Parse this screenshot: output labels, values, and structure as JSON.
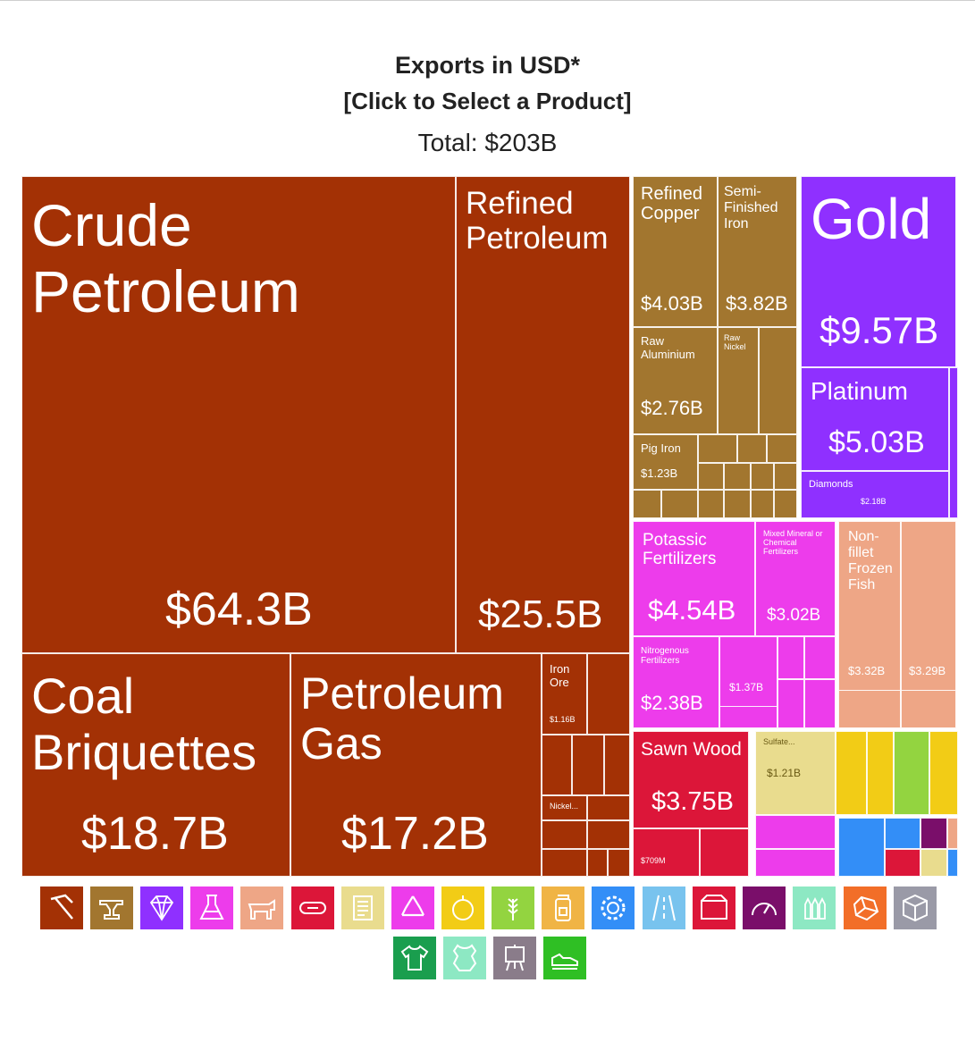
{
  "header": {
    "title": "Exports in USD*",
    "subtitle": "[Click to Select a Product]",
    "total": "Total: $203B"
  },
  "colors": {
    "mineral": "#A33105",
    "metals": "#A2762F",
    "precious": "#8F30FF",
    "chemicals": "#ED3CEB",
    "animal": "#EEA686",
    "wood": "#DC1639",
    "paper": "#E9DC8E",
    "vegetable": "#F2CC16",
    "foodstuffs": "#93D440",
    "machines": "#338EF7",
    "instruments": "#7A0E6A",
    "transport": "#78C3EE"
  },
  "chart_data": {
    "type": "treemap",
    "title": "Exports in USD*",
    "subtitle": "[Click to Select a Product]",
    "total": "Total: $203B",
    "items": [
      {
        "name": "Crude Petroleum",
        "label": "$64.3B",
        "value": 64.3,
        "group": "mineral"
      },
      {
        "name": "Refined Petroleum",
        "label": "$25.5B",
        "value": 25.5,
        "group": "mineral"
      },
      {
        "name": "Coal Briquettes",
        "label": "$18.7B",
        "value": 18.7,
        "group": "mineral"
      },
      {
        "name": "Petroleum Gas",
        "label": "$17.2B",
        "value": 17.2,
        "group": "mineral"
      },
      {
        "name": "Iron Ore",
        "label": "$1.16B",
        "value": 1.16,
        "group": "mineral"
      },
      {
        "name": "Nickel...",
        "label": "",
        "value": 0.6,
        "group": "mineral"
      },
      {
        "name": "Refined Copper",
        "label": "$4.03B",
        "value": 4.03,
        "group": "metals"
      },
      {
        "name": "Semi-Finished Iron",
        "label": "$3.82B",
        "value": 3.82,
        "group": "metals"
      },
      {
        "name": "Raw Aluminium",
        "label": "$2.76B",
        "value": 2.76,
        "group": "metals"
      },
      {
        "name": "Raw Nickel",
        "label": "",
        "value": 1.8,
        "group": "metals"
      },
      {
        "name": "Pig Iron",
        "label": "$1.23B",
        "value": 1.23,
        "group": "metals"
      },
      {
        "name": "Gold",
        "label": "$9.57B",
        "value": 9.57,
        "group": "precious"
      },
      {
        "name": "Platinum",
        "label": "$5.03B",
        "value": 5.03,
        "group": "precious"
      },
      {
        "name": "Diamonds",
        "label": "$2.18B",
        "value": 2.18,
        "group": "precious"
      },
      {
        "name": "Potassic Fertilizers",
        "label": "$4.54B",
        "value": 4.54,
        "group": "chemicals"
      },
      {
        "name": "Mixed Mineral or Chemical Fertilizers",
        "label": "$3.02B",
        "value": 3.02,
        "group": "chemicals"
      },
      {
        "name": "Nitrogenous Fertilizers",
        "label": "$2.38B",
        "value": 2.38,
        "group": "chemicals"
      },
      {
        "name": "",
        "label": "$1.37B",
        "value": 1.37,
        "group": "chemicals"
      },
      {
        "name": "Non-fillet Frozen Fish",
        "label": "$3.32B",
        "value": 3.32,
        "group": "animal"
      },
      {
        "name": "",
        "label": "$3.29B",
        "value": 3.29,
        "group": "animal"
      },
      {
        "name": "Sawn Wood",
        "label": "$3.75B",
        "value": 3.75,
        "group": "wood"
      },
      {
        "name": "",
        "label": "$709M",
        "value": 0.709,
        "group": "wood"
      },
      {
        "name": "Sulfate...",
        "label": "$1.21B",
        "value": 1.21,
        "group": "paper"
      }
    ]
  },
  "icons": [
    {
      "name": "mineral-pickaxe-icon",
      "color": "#A33105"
    },
    {
      "name": "metals-anvil-icon",
      "color": "#A2762F"
    },
    {
      "name": "precious-diamond-icon",
      "color": "#8F30FF"
    },
    {
      "name": "chemicals-flask-icon",
      "color": "#ED3CEB"
    },
    {
      "name": "animal-products-icon",
      "color": "#EEA686"
    },
    {
      "name": "wood-log-icon",
      "color": "#DC1639"
    },
    {
      "name": "paper-scroll-icon",
      "color": "#E9DC8E"
    },
    {
      "name": "plastics-recycle-icon",
      "color": "#ED3CEB"
    },
    {
      "name": "vegetable-fruit-icon",
      "color": "#F2CC16"
    },
    {
      "name": "grain-wheat-icon",
      "color": "#93D440"
    },
    {
      "name": "foodstuffs-jar-icon",
      "color": "#F0B445"
    },
    {
      "name": "machines-gear-icon",
      "color": "#338EF7"
    },
    {
      "name": "transport-road-icon",
      "color": "#78C3EE"
    },
    {
      "name": "stone-box-icon",
      "color": "#DC1639"
    },
    {
      "name": "instruments-gauge-icon",
      "color": "#7A0E6A"
    },
    {
      "name": "weapons-bullets-icon",
      "color": "#8DE8C3"
    },
    {
      "name": "minerals-ore-icon",
      "color": "#F26E28"
    },
    {
      "name": "miscellaneous-box-icon",
      "color": "#9A9AA7"
    },
    {
      "name": "textiles-shirt-icon",
      "color": "#1A9E4E"
    },
    {
      "name": "hides-leather-icon",
      "color": "#8DE8C3"
    },
    {
      "name": "art-easel-icon",
      "color": "#8A7C8A"
    },
    {
      "name": "footwear-shoe-icon",
      "color": "#2FBF24"
    }
  ]
}
